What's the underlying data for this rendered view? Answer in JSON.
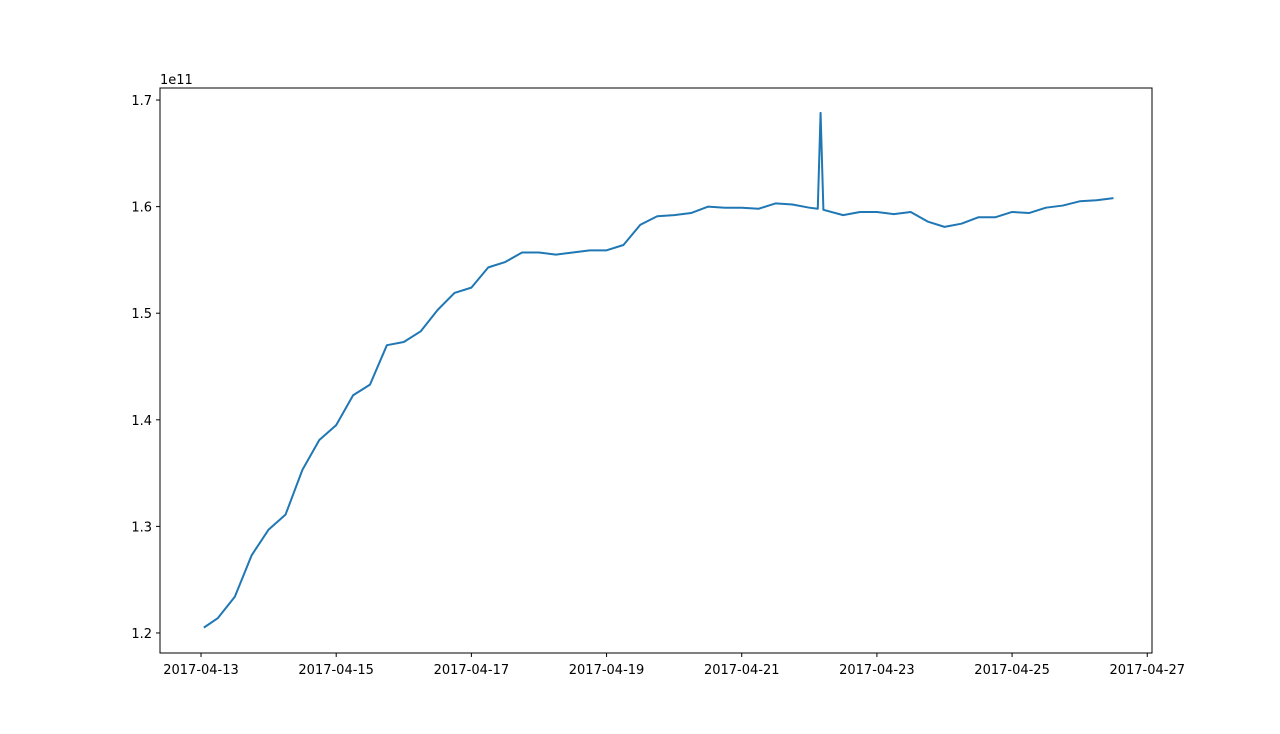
{
  "chart_data": {
    "type": "line",
    "offset_label": "1e11",
    "x": [
      "2017-04-13 01:00",
      "2017-04-13 06:00",
      "2017-04-13 12:00",
      "2017-04-13 18:00",
      "2017-04-14 00:00",
      "2017-04-14 06:00",
      "2017-04-14 12:00",
      "2017-04-14 18:00",
      "2017-04-15 00:00",
      "2017-04-15 06:00",
      "2017-04-15 12:00",
      "2017-04-15 18:00",
      "2017-04-16 00:00",
      "2017-04-16 06:00",
      "2017-04-16 12:00",
      "2017-04-16 18:00",
      "2017-04-17 00:00",
      "2017-04-17 06:00",
      "2017-04-17 12:00",
      "2017-04-17 18:00",
      "2017-04-18 00:00",
      "2017-04-18 06:00",
      "2017-04-18 12:00",
      "2017-04-18 18:00",
      "2017-04-19 00:00",
      "2017-04-19 06:00",
      "2017-04-19 12:00",
      "2017-04-19 18:00",
      "2017-04-20 00:00",
      "2017-04-20 06:00",
      "2017-04-20 12:00",
      "2017-04-20 18:00",
      "2017-04-21 00:00",
      "2017-04-21 06:00",
      "2017-04-21 12:00",
      "2017-04-21 18:00",
      "2017-04-22 00:00",
      "2017-04-22 03:00",
      "2017-04-22 04:00",
      "2017-04-22 05:00",
      "2017-04-22 12:00",
      "2017-04-22 18:00",
      "2017-04-23 00:00",
      "2017-04-23 06:00",
      "2017-04-23 12:00",
      "2017-04-23 18:00",
      "2017-04-24 00:00",
      "2017-04-24 06:00",
      "2017-04-24 12:00",
      "2017-04-24 18:00",
      "2017-04-25 00:00",
      "2017-04-25 06:00",
      "2017-04-25 12:00",
      "2017-04-25 18:00",
      "2017-04-26 00:00",
      "2017-04-26 06:00",
      "2017-04-26 12:00"
    ],
    "series": [
      {
        "color": "#1f77b4",
        "values": [
          1.205,
          1.214,
          1.234,
          1.273,
          1.297,
          1.311,
          1.353,
          1.381,
          1.395,
          1.423,
          1.433,
          1.47,
          1.473,
          1.483,
          1.503,
          1.519,
          1.524,
          1.543,
          1.548,
          1.557,
          1.557,
          1.555,
          1.557,
          1.559,
          1.559,
          1.564,
          1.583,
          1.591,
          1.592,
          1.594,
          1.6,
          1.599,
          1.599,
          1.598,
          1.603,
          1.602,
          1.599,
          1.598,
          1.688,
          1.597,
          1.592,
          1.595,
          1.595,
          1.593,
          1.595,
          1.586,
          1.581,
          1.584,
          1.59,
          1.59,
          1.595,
          1.594,
          1.599,
          1.601,
          1.605,
          1.606,
          1.608
        ]
      }
    ],
    "xlim": [
      "2017-04-12 09:26",
      "2017-04-27 01:41"
    ],
    "xticks": [
      "2017-04-13",
      "2017-04-15",
      "2017-04-17",
      "2017-04-19",
      "2017-04-21",
      "2017-04-23",
      "2017-04-25",
      "2017-04-27"
    ],
    "ylim": [
      1.1812,
      1.7113
    ],
    "yticks": [
      1.2,
      1.3,
      1.4,
      1.5,
      1.6,
      1.7
    ]
  }
}
